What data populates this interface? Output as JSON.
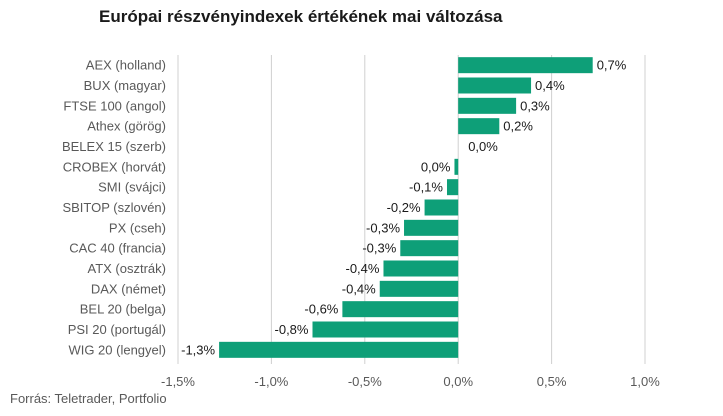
{
  "chart_data": {
    "type": "bar",
    "orientation": "horizontal",
    "title": "Európai részvényindexek értékének mai változása",
    "source": "Forrás: Teletrader, Portfolio",
    "categories": [
      "AEX (holland)",
      "BUX (magyar)",
      "FTSE 100 (angol)",
      "Athex (görög)",
      "BELEX 15 (szerb)",
      "CROBEX (horvát)",
      "SMI (svájci)",
      "SBITOP (szlovén)",
      "PX (cseh)",
      "CAC 40 (francia)",
      "ATX (osztrák)",
      "DAX (német)",
      "BEL 20 (belga)",
      "PSI 20 (portugál)",
      "WIG 20 (lengyel)"
    ],
    "values": [
      0.72,
      0.39,
      0.31,
      0.22,
      0.0,
      -0.02,
      -0.06,
      -0.18,
      -0.29,
      -0.31,
      -0.4,
      -0.42,
      -0.62,
      -0.78,
      -1.28
    ],
    "value_labels": [
      "0,7%",
      "0,4%",
      "0,3%",
      "0,2%",
      "0,0%",
      "0,0%",
      "-0,1%",
      "-0,2%",
      "-0,3%",
      "-0,3%",
      "-0,4%",
      "-0,4%",
      "-0,6%",
      "-0,8%",
      "-1,3%"
    ],
    "xlim": [
      -1.5,
      1.0
    ],
    "xticks": [
      -1.5,
      -1.0,
      -0.5,
      0.0,
      0.5,
      1.0
    ],
    "xtick_labels": [
      "-1,5%",
      "-1,0%",
      "-0,5%",
      "0,0%",
      "0,5%",
      "1,0%"
    ],
    "bar_color": "#0e9f78",
    "grid": true
  }
}
